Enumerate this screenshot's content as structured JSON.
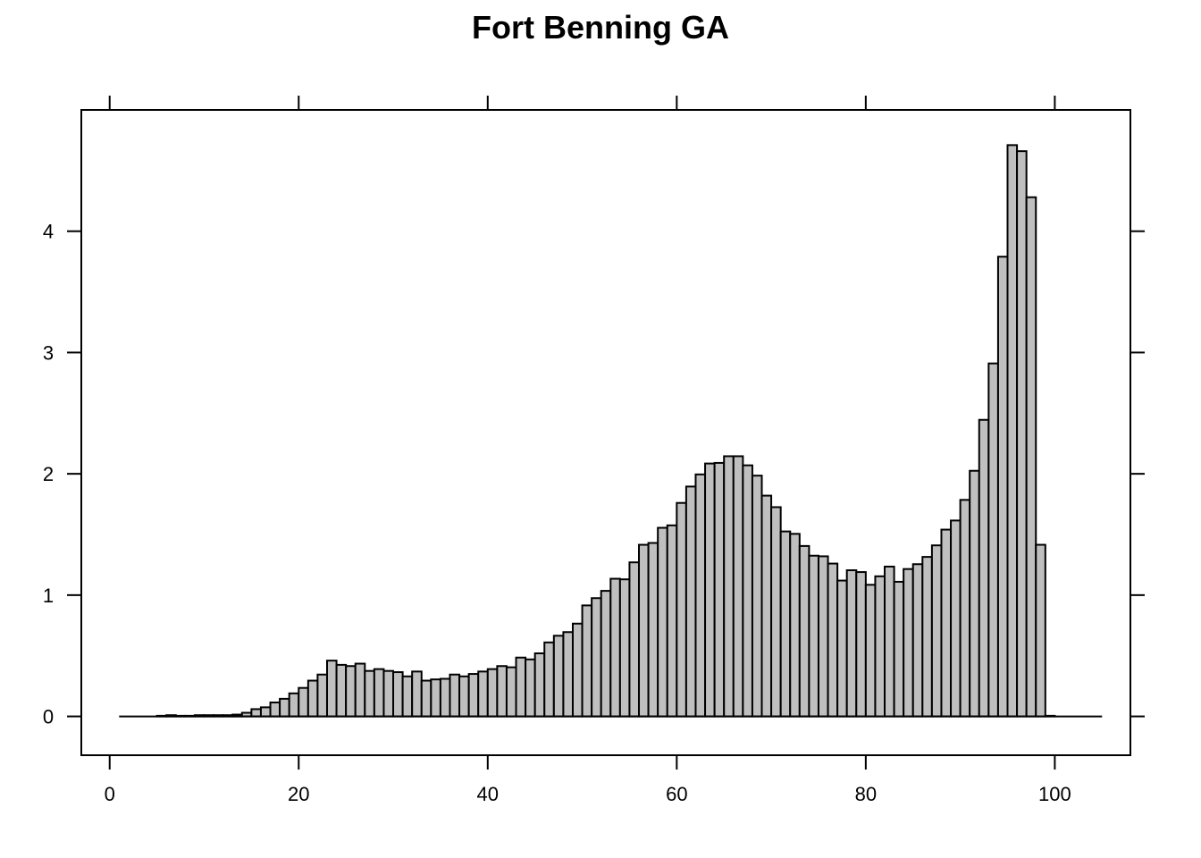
{
  "chart_data": {
    "type": "bar",
    "title": "Fort Benning GA",
    "xlabel": "",
    "ylabel": "",
    "xlim": [
      -3,
      108
    ],
    "ylim": [
      -0.32,
      5.0
    ],
    "x_ticks": [
      0,
      20,
      40,
      60,
      80,
      100
    ],
    "x_tick_labels": [
      "0",
      "20",
      "40",
      "60",
      "80",
      "100"
    ],
    "y_ticks": [
      0,
      1,
      2,
      3,
      4
    ],
    "y_tick_labels": [
      "0",
      "1",
      "2",
      "3",
      "4"
    ],
    "grid": false,
    "legend": "none",
    "bar_color": "#bfbfbf",
    "edge_color": "#000000",
    "bin_width": 1,
    "baseline_range": [
      1,
      105
    ],
    "bin_starts": [
      5,
      6,
      7,
      8,
      9,
      10,
      11,
      12,
      13,
      14,
      15,
      16,
      17,
      18,
      19,
      20,
      21,
      22,
      23,
      24,
      25,
      26,
      27,
      28,
      29,
      30,
      31,
      32,
      33,
      34,
      35,
      36,
      37,
      38,
      39,
      40,
      41,
      42,
      43,
      44,
      45,
      46,
      47,
      48,
      49,
      50,
      51,
      52,
      53,
      54,
      55,
      56,
      57,
      58,
      59,
      60,
      61,
      62,
      63,
      64,
      65,
      66,
      67,
      68,
      69,
      70,
      71,
      72,
      73,
      74,
      75,
      76,
      77,
      78,
      79,
      80,
      81,
      82,
      83,
      84,
      85,
      86,
      87,
      88,
      89,
      90,
      91,
      92,
      93,
      94,
      95,
      96,
      97,
      98,
      99
    ],
    "values": [
      0.005,
      0.01,
      0.005,
      0.005,
      0.01,
      0.01,
      0.01,
      0.01,
      0.015,
      0.03,
      0.06,
      0.075,
      0.115,
      0.145,
      0.19,
      0.235,
      0.295,
      0.345,
      0.46,
      0.425,
      0.415,
      0.435,
      0.375,
      0.39,
      0.375,
      0.365,
      0.33,
      0.37,
      0.295,
      0.305,
      0.31,
      0.345,
      0.33,
      0.35,
      0.37,
      0.39,
      0.415,
      0.405,
      0.485,
      0.47,
      0.52,
      0.61,
      0.665,
      0.695,
      0.765,
      0.915,
      0.975,
      1.035,
      1.135,
      1.13,
      1.27,
      1.415,
      1.43,
      1.555,
      1.575,
      1.76,
      1.895,
      1.995,
      2.085,
      2.09,
      2.145,
      2.145,
      2.07,
      1.985,
      1.82,
      1.725,
      1.525,
      1.505,
      1.405,
      1.325,
      1.32,
      1.26,
      1.12,
      1.205,
      1.19,
      1.085,
      1.155,
      1.235,
      1.11,
      1.215,
      1.255,
      1.315,
      1.41,
      1.54,
      1.615,
      1.785,
      2.025,
      2.445,
      2.91,
      3.79,
      4.71,
      4.66,
      4.28,
      1.415,
      0.005
    ]
  }
}
